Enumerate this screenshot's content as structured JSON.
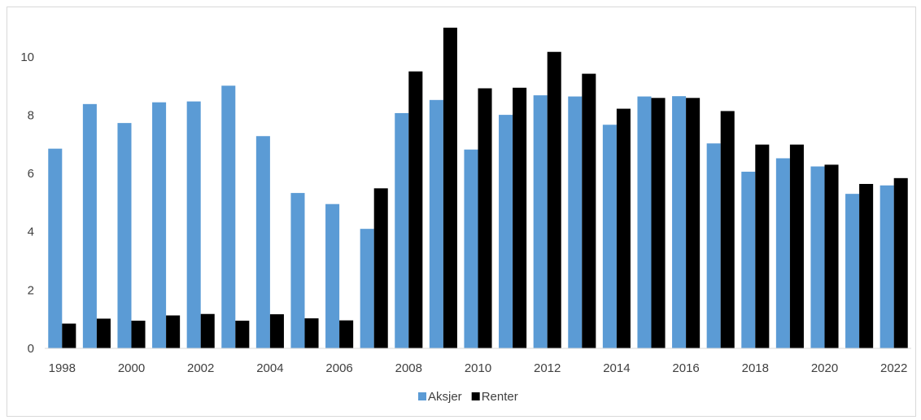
{
  "chart_data": {
    "type": "bar",
    "categories": [
      "1998",
      "1999",
      "2000",
      "2001",
      "2002",
      "2003",
      "2004",
      "2005",
      "2006",
      "2007",
      "2008",
      "2009",
      "2010",
      "2011",
      "2012",
      "2013",
      "2014",
      "2015",
      "2016",
      "2017",
      "2018",
      "2019",
      "2020",
      "2021",
      "2022"
    ],
    "x_tick_labels": [
      "1998",
      "2000",
      "2002",
      "2004",
      "2006",
      "2008",
      "2010",
      "2012",
      "2014",
      "2016",
      "2018",
      "2020",
      "2022"
    ],
    "y_tick_labels": [
      "0",
      "2",
      "4",
      "6",
      "8",
      "10"
    ],
    "ylim": [
      0,
      11
    ],
    "grid": false,
    "legend_position": "bottom",
    "title": "",
    "xlabel": "",
    "ylabel": "",
    "series": [
      {
        "name": "Aksjer",
        "color": "#5b9bd5",
        "values": [
          6.85,
          8.38,
          7.73,
          8.44,
          8.47,
          9.01,
          7.28,
          5.33,
          4.95,
          4.1,
          8.07,
          8.52,
          6.82,
          8.01,
          8.68,
          8.64,
          7.67,
          8.64,
          8.65,
          7.03,
          6.06,
          6.52,
          6.24,
          5.3,
          5.59
        ]
      },
      {
        "name": "Renter",
        "color": "#000000",
        "values": [
          0.85,
          1.02,
          0.95,
          1.13,
          1.18,
          0.95,
          1.17,
          1.03,
          0.96,
          5.49,
          9.5,
          11.0,
          8.92,
          8.94,
          10.17,
          9.42,
          8.22,
          8.59,
          8.59,
          8.14,
          6.99,
          6.99,
          6.3,
          5.64,
          5.84
        ]
      }
    ]
  }
}
